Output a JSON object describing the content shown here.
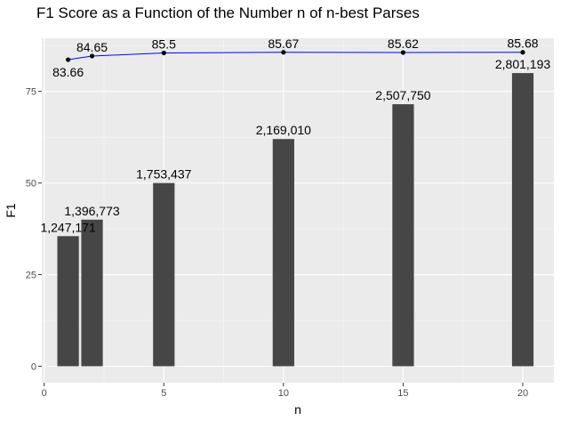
{
  "chart_data": {
    "type": "bar",
    "title": "F1 Score as a Function of the Number n of n-best Parses",
    "xlabel": "n",
    "ylabel": "F1",
    "xlim": [
      -0.1,
      21.3
    ],
    "ylim": [
      -4.5,
      89.5
    ],
    "xticks": [
      0,
      5,
      10,
      15,
      20
    ],
    "yticks": [
      0,
      25,
      50,
      75
    ],
    "grid": true,
    "legend": "none",
    "bars": {
      "x": [
        1,
        2,
        5,
        10,
        15,
        20
      ],
      "height": [
        35.5,
        40,
        50,
        62,
        71.5,
        80
      ],
      "labels": [
        "1,247,171",
        "1,396,773",
        "1,753,437",
        "2,169,010",
        "2,507,750",
        "2,801,193"
      ],
      "color": "#464646"
    },
    "line": {
      "x": [
        1,
        2,
        5,
        10,
        15,
        20
      ],
      "y": [
        83.66,
        84.65,
        85.5,
        85.67,
        85.62,
        85.68
      ],
      "labels": [
        "83.66",
        "84.65",
        "85.5",
        "85.67",
        "85.62",
        "85.68"
      ],
      "color": "#0000ff"
    }
  }
}
